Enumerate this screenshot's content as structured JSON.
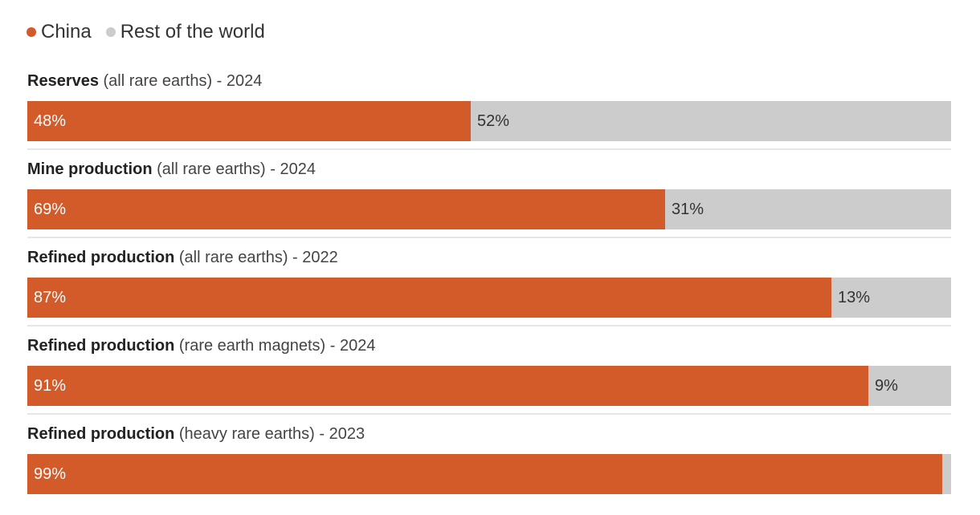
{
  "chart_data": {
    "type": "bar",
    "orientation": "horizontal",
    "stacked": true,
    "legend_position": "top-left",
    "series": [
      {
        "name": "China",
        "color": "#d35a29"
      },
      {
        "name": "Rest of the world",
        "color": "#cccccc"
      }
    ],
    "rows": [
      {
        "title_bold": "Reserves",
        "title_rest": " (all rare earths) - 2024",
        "china": 48,
        "rest": 52,
        "china_label": "48%",
        "rest_label": "52%"
      },
      {
        "title_bold": "Mine production",
        "title_rest": " (all rare earths) - 2024",
        "china": 69,
        "rest": 31,
        "china_label": "69%",
        "rest_label": "31%"
      },
      {
        "title_bold": "Refined production",
        "title_rest": " (all rare earths) - 2022",
        "china": 87,
        "rest": 13,
        "china_label": "87%",
        "rest_label": "13%"
      },
      {
        "title_bold": "Refined production",
        "title_rest": " (rare earth magnets) - 2024",
        "china": 91,
        "rest": 9,
        "china_label": "91%",
        "rest_label": "9%"
      },
      {
        "title_bold": "Refined production",
        "title_rest": " (heavy rare earths) - 2023",
        "china": 99,
        "rest": 1,
        "china_label": "99%",
        "rest_label": ""
      }
    ]
  }
}
